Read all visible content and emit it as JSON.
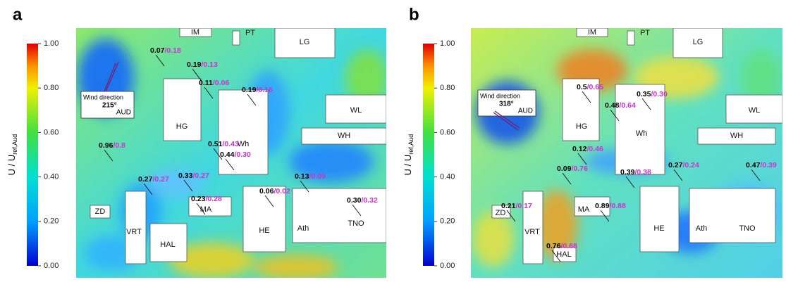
{
  "panels": [
    {
      "letter": "a",
      "colorbar": {
        "label": "U / U",
        "label_sub": "ref,Aud",
        "ticks": [
          "1.00",
          "0.80",
          "0.60",
          "0.40",
          "0.20",
          "0.00"
        ]
      },
      "wind": {
        "text": "Wind direction",
        "angle": "215°",
        "site": "AUD"
      },
      "buildings": [
        "IM",
        "PT",
        "LG",
        "WL",
        "HG",
        "Wh",
        "WH",
        "ZD",
        "VRT",
        "HAL",
        "MA",
        "HE",
        "Ath",
        "TNO"
      ],
      "annotations": [
        {
          "a": "0.07",
          "b": "/0.18"
        },
        {
          "a": "0.19",
          "b": "/0.13"
        },
        {
          "a": "0.11",
          "b": "/0.06"
        },
        {
          "a": "0.19",
          "b": "/0.16"
        },
        {
          "a": "0.96",
          "b": "/0.8"
        },
        {
          "a": "0.51",
          "b": "/0.43"
        },
        {
          "a": "0.44",
          "b": "/0.30"
        },
        {
          "a": "0.27",
          "b": "/0.27"
        },
        {
          "a": "0.33",
          "b": "/0.27"
        },
        {
          "a": "0.23",
          "b": "/0.28"
        },
        {
          "a": "0.13",
          "b": "/0.09"
        },
        {
          "a": "0.06",
          "b": "/0.02"
        },
        {
          "a": "0.30",
          "b": "/0.32"
        }
      ]
    },
    {
      "letter": "b",
      "colorbar": {
        "label": "U / U",
        "label_sub": "ref,Aud",
        "ticks": [
          "1.00",
          "0.80",
          "0.60",
          "0.40",
          "0.20",
          "0.00"
        ]
      },
      "wind": {
        "text": "Wind direction",
        "angle": "318°",
        "site": "AUD"
      },
      "buildings": [
        "IM",
        "PT",
        "LG",
        "WL",
        "HG",
        "Wh",
        "WH",
        "ZD",
        "VRT",
        "HAL",
        "MA",
        "HE",
        "Ath",
        "TNO"
      ],
      "annotations": [
        {
          "a": "0.5",
          "b": "/0.65"
        },
        {
          "a": "0.35",
          "b": "/0.30"
        },
        {
          "a": "0.48",
          "b": "/0.64"
        },
        {
          "a": "0.12",
          "b": "/0.46"
        },
        {
          "a": "0.09",
          "b": "/0.76"
        },
        {
          "a": "0.39",
          "b": "/0.38"
        },
        {
          "a": "0.27",
          "b": "/0.24"
        },
        {
          "a": "0.47",
          "b": "/0.39"
        },
        {
          "a": "0.21",
          "b": "/0.17"
        },
        {
          "a": "0.89",
          "b": "/0.88"
        },
        {
          "a": "0.76",
          "b": "/0.68"
        }
      ]
    }
  ]
}
